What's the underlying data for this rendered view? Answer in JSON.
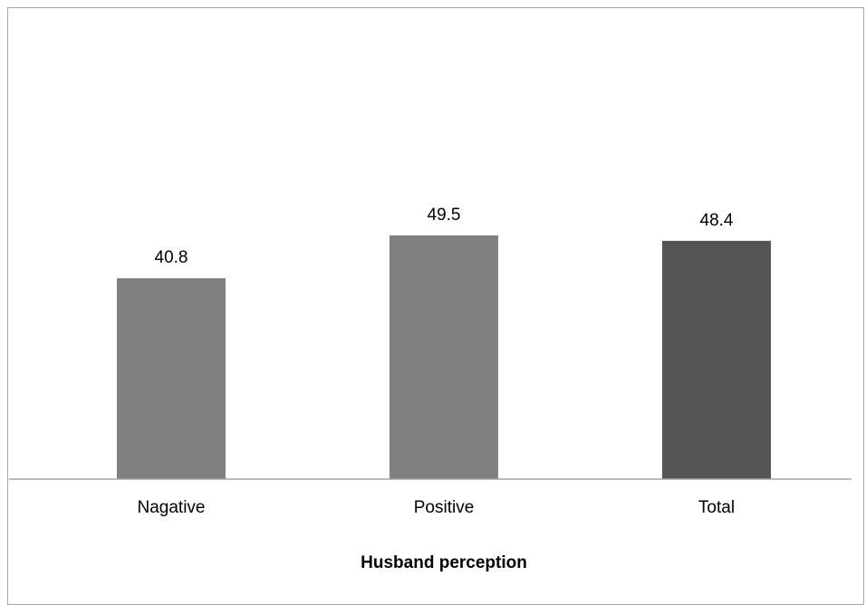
{
  "chart_data": {
    "type": "bar",
    "categories": [
      "Nagative",
      "Positive",
      "Total"
    ],
    "values": [
      40.8,
      49.5,
      48.4
    ],
    "value_labels": [
      "40.8",
      "49.5",
      "48.4"
    ],
    "title": "",
    "xlabel": "Husband perception",
    "ylabel": "",
    "ylim": [
      0,
      60
    ],
    "grid": false,
    "legend": "none",
    "colors": [
      "#808080",
      "#808080",
      "#555555"
    ],
    "axis_color": "#a6a6a6"
  }
}
